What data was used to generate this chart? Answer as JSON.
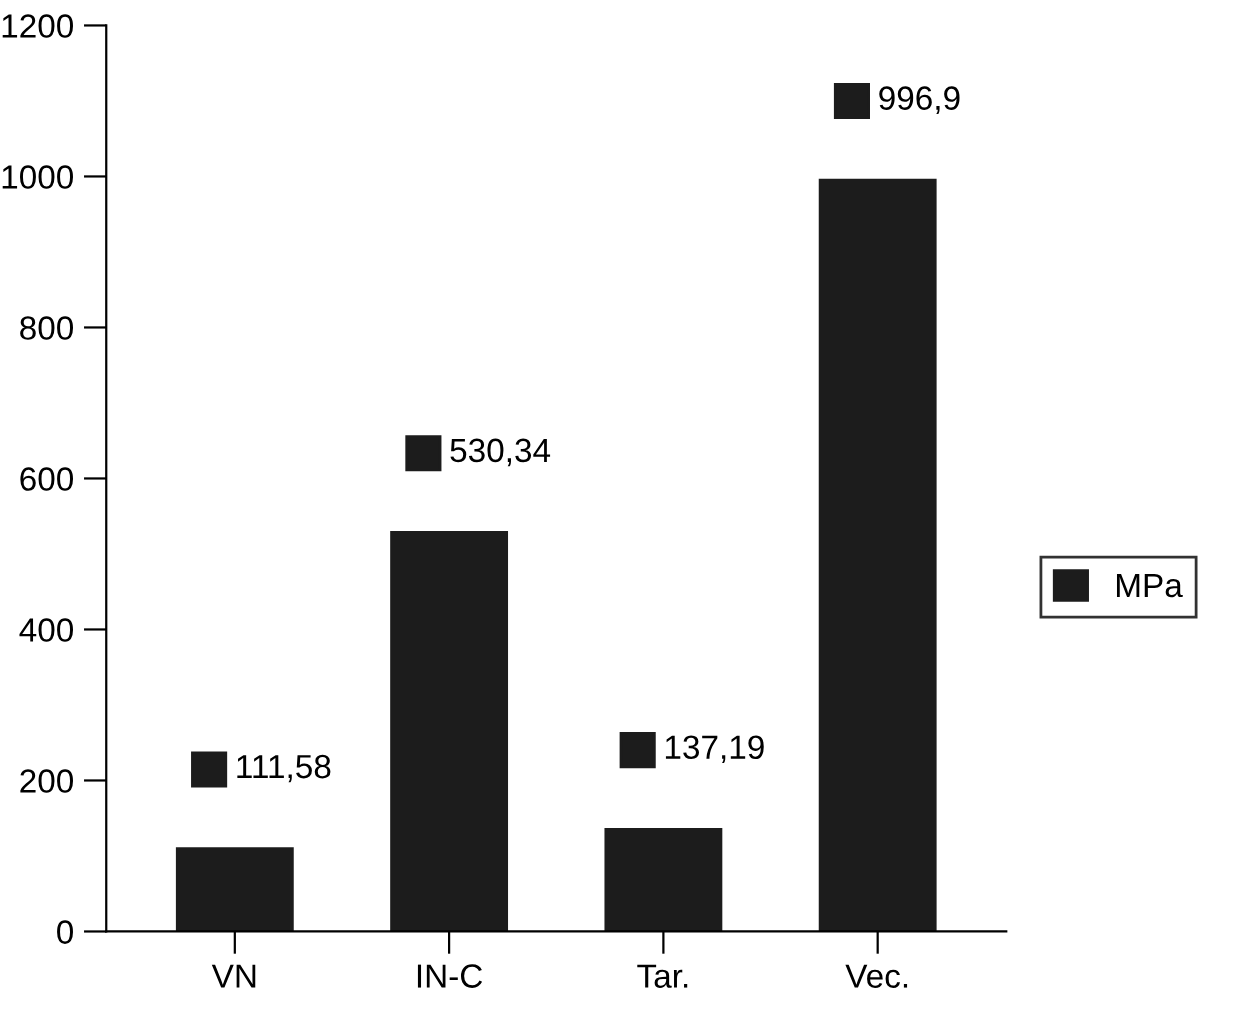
{
  "chart_data": {
    "type": "bar",
    "categories": [
      "VN",
      "IN-C",
      "Tar.",
      "Vec."
    ],
    "series": [
      {
        "name": "MPa",
        "color": "#1c1c1c",
        "values": [
          111.58,
          530.34,
          137.19,
          996.9
        ],
        "value_labels": [
          "111,58",
          "530,34",
          "137,19",
          "996,9"
        ]
      }
    ],
    "ylim": [
      0,
      1200
    ],
    "yticks": [
      0,
      200,
      400,
      600,
      800,
      1000,
      1200
    ],
    "grid": false,
    "legend": "right"
  }
}
